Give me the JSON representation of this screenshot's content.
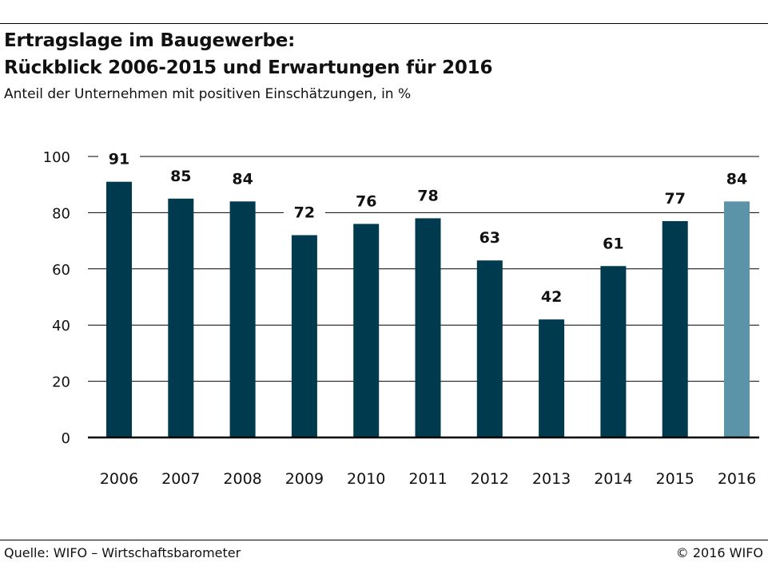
{
  "header": {
    "title_line1": "Ertragslage im Baugewerbe:",
    "title_line2": "Rückblick 2006-2015 und Erwartungen für 2016",
    "subtitle": "Anteil der Unternehmen mit positiven Einschätzungen, in %"
  },
  "footer": {
    "source": "Quelle: WIFO – Wirtschaftsbarometer",
    "copyright": "© 2016 WIFO"
  },
  "colors": {
    "bar": "#003a4f",
    "bar_highlight": "#5b93a8",
    "grid": "#000000",
    "text": "#111111"
  },
  "chart_data": {
    "type": "bar",
    "title": "Ertragslage im Baugewerbe: Rückblick 2006-2015 und Erwartungen für 2016",
    "subtitle": "Anteil der Unternehmen mit positiven Einschätzungen, in %",
    "categories": [
      "2006",
      "2007",
      "2008",
      "2009",
      "2010",
      "2011",
      "2012",
      "2013",
      "2014",
      "2015",
      "2016"
    ],
    "values": [
      91,
      85,
      84,
      72,
      76,
      78,
      63,
      42,
      61,
      77,
      84
    ],
    "highlight": [
      "2016"
    ],
    "ylim": [
      0,
      100
    ],
    "yticks": [
      0,
      20,
      40,
      60,
      80,
      100
    ],
    "xlabel": "",
    "ylabel": "",
    "grid": true,
    "data_labels": true
  }
}
